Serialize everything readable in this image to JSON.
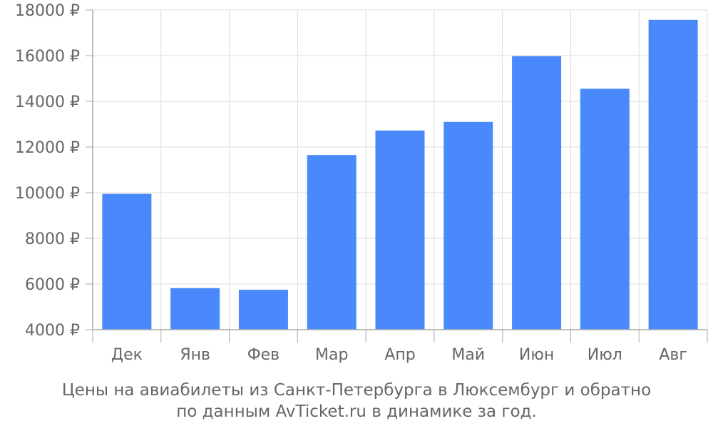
{
  "chart_data": {
    "type": "bar",
    "categories": [
      "Дек",
      "Янв",
      "Фев",
      "Мар",
      "Апр",
      "Май",
      "Июн",
      "Июл",
      "Авг"
    ],
    "values": [
      9950,
      5820,
      5750,
      11650,
      12720,
      13100,
      15980,
      14550,
      17570
    ],
    "ylim": [
      4000,
      18000
    ],
    "yticks": [
      4000,
      6000,
      8000,
      10000,
      12000,
      14000,
      16000,
      18000
    ],
    "ytick_labels": [
      "4000 ₽",
      "6000 ₽",
      "8000 ₽",
      "10000 ₽",
      "12000 ₽",
      "14000 ₽",
      "16000 ₽",
      "18000 ₽"
    ],
    "title": "",
    "xlabel": "",
    "ylabel": "",
    "grid": true,
    "bar_color": "#4a89fc",
    "grid_color": "#dddddd",
    "axis_color": "#aaaaaa",
    "text_color": "#666666"
  },
  "caption": {
    "line1": "Цены на авиабилеты из Санкт-Петербурга в Люксембург и обратно",
    "line2": "по данным AvTicket.ru в динамике за год."
  }
}
